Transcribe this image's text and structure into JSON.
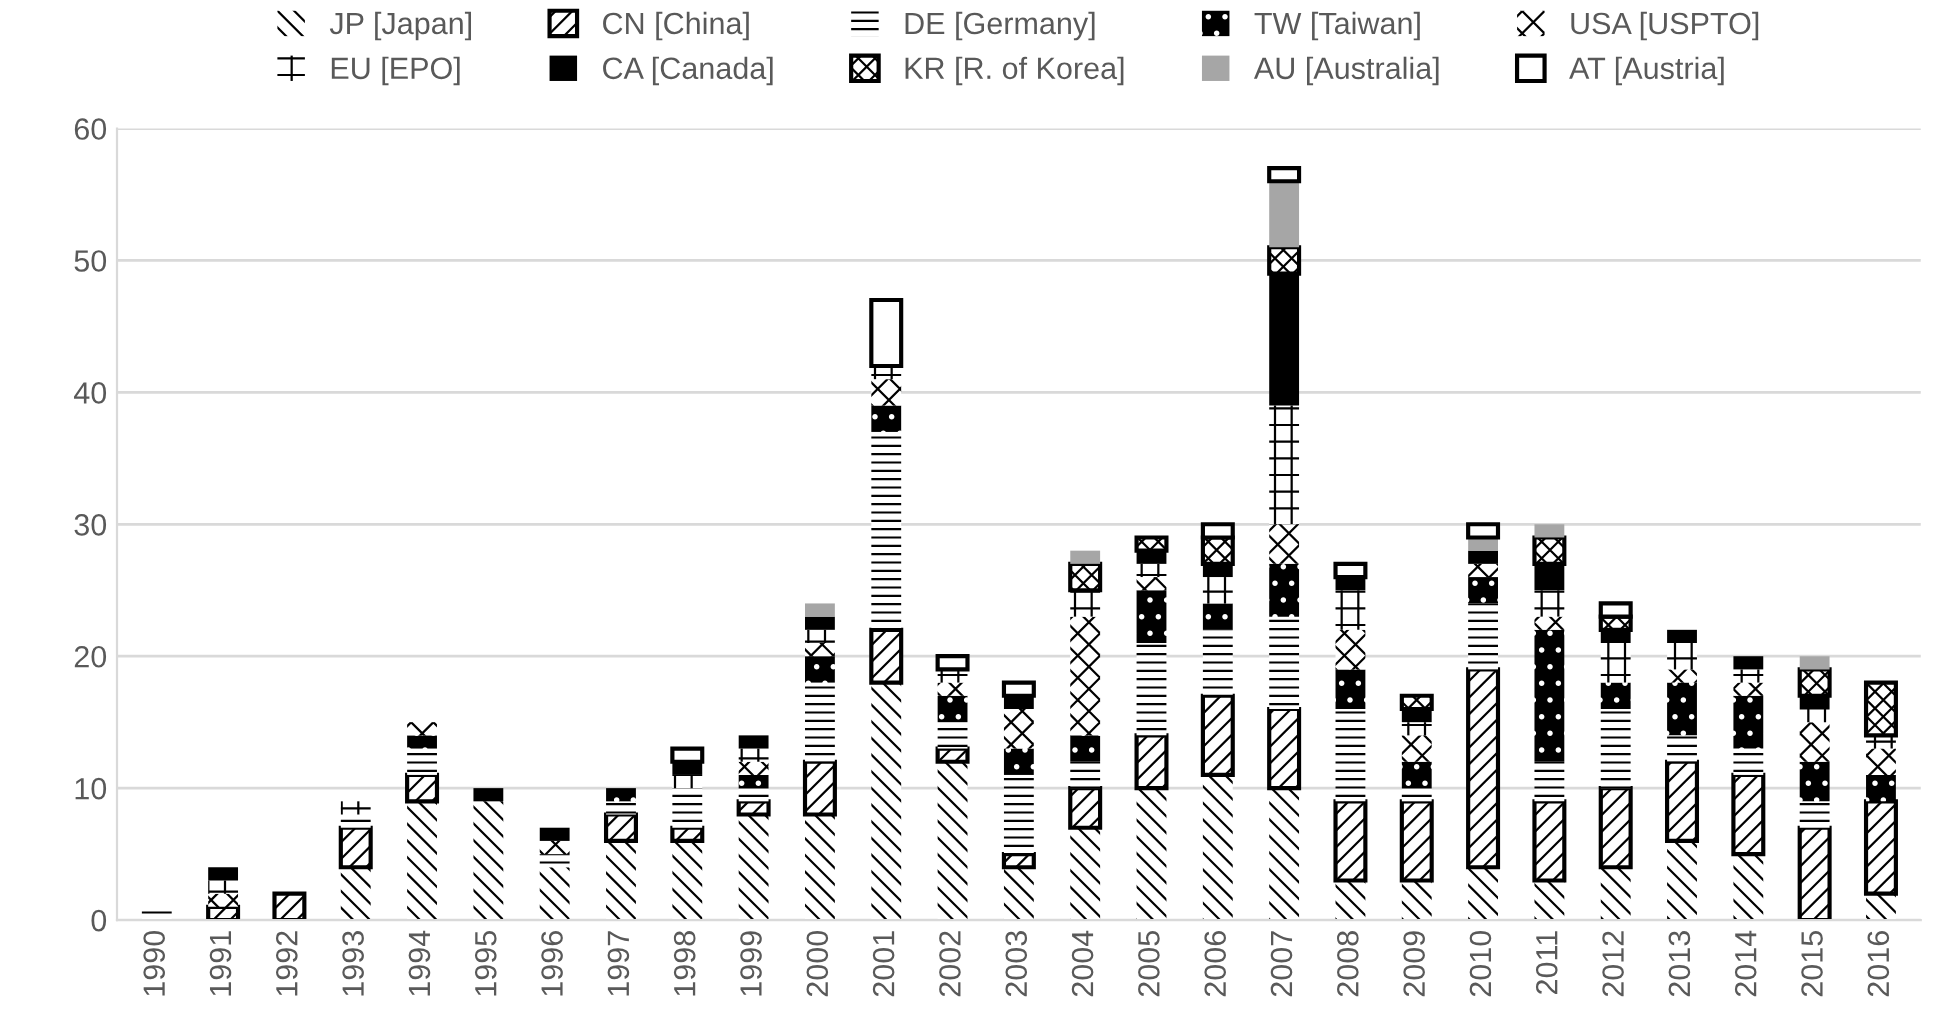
{
  "chart_data": {
    "type": "bar",
    "stacked": true,
    "categories": [
      "1990",
      "1991",
      "1992",
      "1993",
      "1994",
      "1995",
      "1996",
      "1997",
      "1998",
      "1999",
      "2000",
      "2001",
      "2002",
      "2003",
      "2004",
      "2005",
      "2006",
      "2007",
      "2008",
      "2009",
      "2010",
      "2011",
      "2012",
      "2013",
      "2014",
      "2015",
      "2016"
    ],
    "series": [
      {
        "name": "JP [Japan]",
        "color": "#ffffff",
        "values": [
          0,
          0,
          0,
          4,
          9,
          9,
          4,
          6,
          6,
          8,
          8,
          18,
          12,
          4,
          7,
          10,
          11,
          10,
          3,
          3,
          4,
          3,
          4,
          6,
          5,
          0,
          2
        ]
      },
      {
        "name": "CN [China]",
        "color": "#000000",
        "values": [
          0,
          1,
          2,
          3,
          2,
          0,
          0,
          2,
          1,
          1,
          4,
          4,
          1,
          1,
          3,
          4,
          6,
          6,
          6,
          6,
          15,
          6,
          6,
          6,
          6,
          7,
          7
        ]
      },
      {
        "name": "DE [Germany]",
        "color": "#ffffff",
        "values": [
          1,
          0,
          0,
          1,
          2,
          0,
          1,
          1,
          3,
          1,
          6,
          15,
          2,
          6,
          2,
          7,
          5,
          7,
          7,
          1,
          5,
          3,
          6,
          2,
          2,
          2,
          0
        ]
      },
      {
        "name": "TW [Taiwan]",
        "color": "#000000",
        "values": [
          0,
          0,
          0,
          0,
          1,
          0,
          0,
          1,
          0,
          1,
          2,
          2,
          2,
          2,
          2,
          4,
          2,
          4,
          3,
          2,
          2,
          10,
          2,
          4,
          4,
          3,
          2
        ]
      },
      {
        "name": "USA [USPTO]",
        "color": "#ffffff",
        "values": [
          0,
          1,
          0,
          0,
          1,
          0,
          1,
          0,
          0,
          1,
          1,
          2,
          1,
          3,
          9,
          1,
          0,
          3,
          3,
          2,
          1,
          1,
          0,
          1,
          1,
          3,
          2
        ]
      },
      {
        "name": "EU [EPO]",
        "color": "#000000",
        "values": [
          0,
          1,
          0,
          1,
          0,
          0,
          0,
          0,
          1,
          1,
          1,
          1,
          1,
          0,
          2,
          1,
          2,
          9,
          3,
          1,
          0,
          2,
          3,
          2,
          1,
          1,
          1
        ]
      },
      {
        "name": "CA [Canada]",
        "color": "#000000",
        "values": [
          0,
          1,
          0,
          0,
          0,
          1,
          1,
          0,
          1,
          1,
          1,
          0,
          0,
          1,
          0,
          1,
          1,
          10,
          1,
          1,
          1,
          2,
          1,
          1,
          1,
          1,
          0
        ]
      },
      {
        "name": "KR [R. of Korea]",
        "color": "#000000",
        "values": [
          0,
          0,
          0,
          0,
          0,
          0,
          0,
          0,
          0,
          0,
          0,
          0,
          0,
          0,
          2,
          1,
          2,
          2,
          0,
          1,
          0,
          2,
          1,
          0,
          0,
          2,
          4
        ]
      },
      {
        "name": "AU [Australia]",
        "color": "#a6a6a6",
        "values": [
          0,
          0,
          0,
          0,
          0,
          0,
          0,
          0,
          0,
          0,
          1,
          0,
          0,
          0,
          1,
          0,
          0,
          5,
          0,
          0,
          1,
          1,
          0,
          0,
          0,
          1,
          0
        ]
      },
      {
        "name": "AT [Austria]",
        "color": "#ffffff",
        "values": [
          0,
          0,
          0,
          0,
          0,
          0,
          0,
          0,
          1,
          0,
          0,
          5,
          1,
          1,
          0,
          0,
          1,
          1,
          1,
          0,
          1,
          0,
          1,
          0,
          0,
          0,
          0
        ]
      }
    ],
    "ylim": [
      0,
      60
    ],
    "yticks": [
      0,
      10,
      20,
      30,
      40,
      50,
      60
    ],
    "grid": "y",
    "legend": "top"
  }
}
